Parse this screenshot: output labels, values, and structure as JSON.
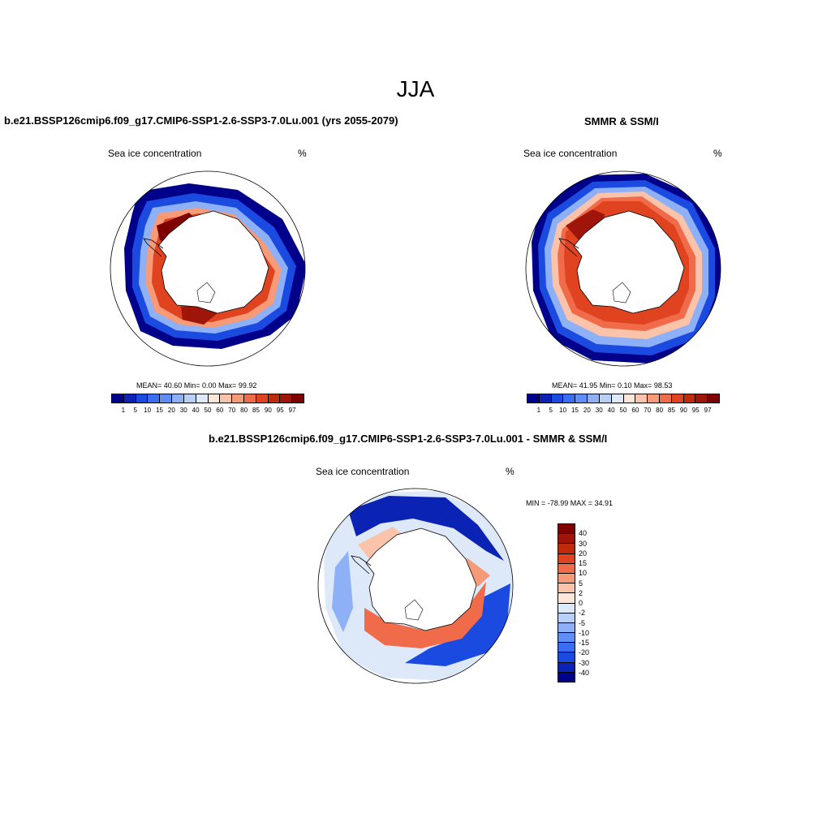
{
  "figure": {
    "title": "JJA"
  },
  "panel_model": {
    "title": "b.e21.BSSP126cmip6.f09_g17.CMIP6-SSP1-2.6-SSP3-7.0Lu.001 (yrs 2055-2079)",
    "variable": "Sea ice concentration",
    "units": "%",
    "stats": "MEAN=  40.60  Min=   0.00  Max=  99.92"
  },
  "panel_obs": {
    "title": "SMMR & SSM/I",
    "variable": "Sea ice concentration",
    "units": "%",
    "stats": "MEAN=  41.95  Min=   0.10  Max=  98.53"
  },
  "panel_diff": {
    "title": "b.e21.BSSP126cmip6.f09_g17.CMIP6-SSP1-2.6-SSP3-7.0Lu.001 - SMMR & SSM/I",
    "variable": "Sea ice concentration",
    "units": "%",
    "stats": "MIN = -78.99 MAX =  34.91"
  },
  "colorbar_abs": {
    "labels": [
      "1",
      "5",
      "10",
      "15",
      "20",
      "30",
      "40",
      "50",
      "60",
      "70",
      "80",
      "85",
      "90",
      "95",
      "97"
    ],
    "colors": [
      "#00008b",
      "#0a23b4",
      "#1a4ae0",
      "#3a6ef2",
      "#5f8ef7",
      "#8db0f7",
      "#b8cff7",
      "#dde8f8",
      "#fde6d8",
      "#fbc3aa",
      "#f79a78",
      "#ef6b4a",
      "#e0431f",
      "#c22a0c",
      "#a0150a",
      "#7f0000"
    ]
  },
  "colorbar_diff": {
    "labels": [
      "40",
      "30",
      "20",
      "15",
      "10",
      "5",
      "2",
      "0",
      "-2",
      "-5",
      "-10",
      "-15",
      "-20",
      "-30",
      "-40"
    ],
    "colors": [
      "#7f0000",
      "#a0150a",
      "#c22a0c",
      "#e0431f",
      "#ef6b4a",
      "#f79a78",
      "#fbc3aa",
      "#fde6d8",
      "#dde8f8",
      "#b8cff7",
      "#8db0f7",
      "#5f8ef7",
      "#3a6ef2",
      "#1a4ae0",
      "#0a23b4",
      "#00008b"
    ]
  }
}
